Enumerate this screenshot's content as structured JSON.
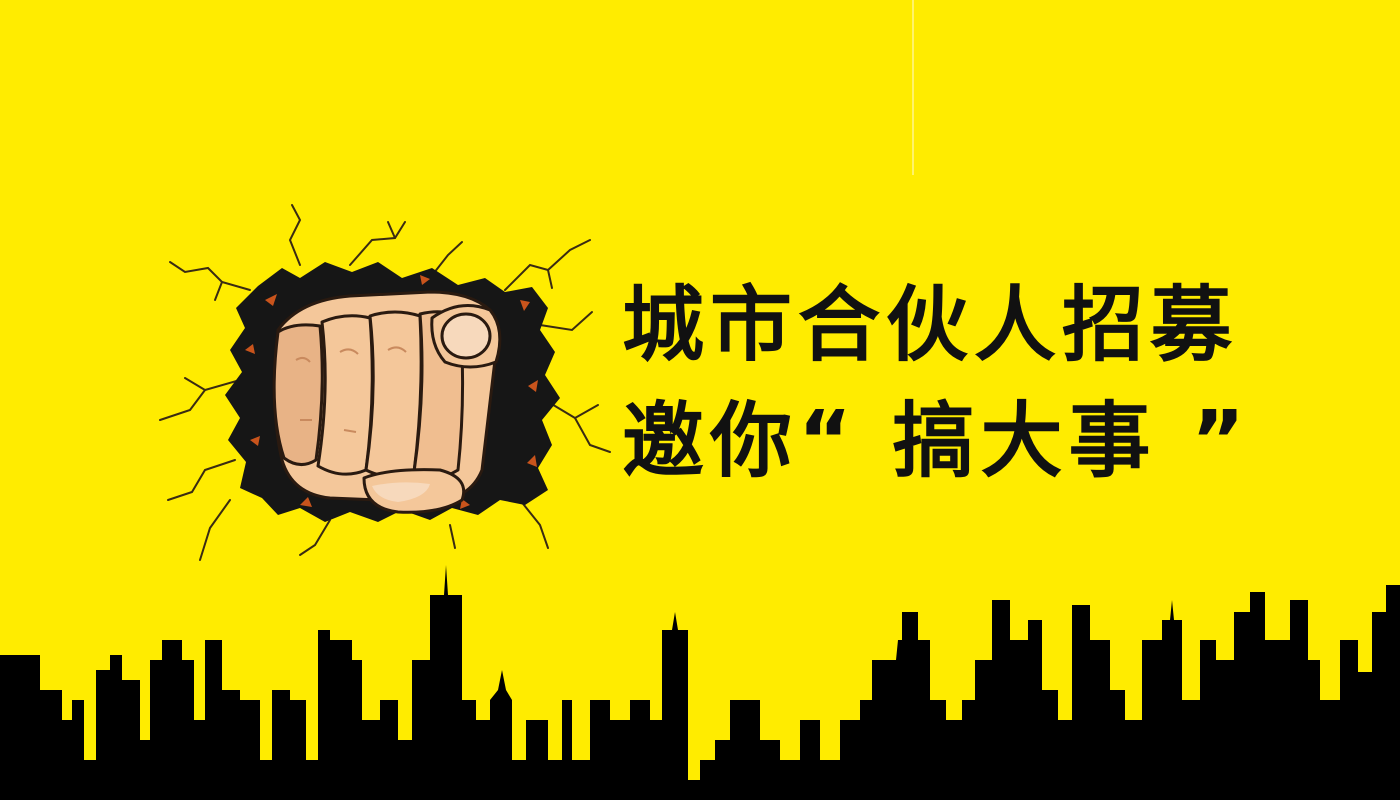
{
  "banner": {
    "headline_line1": "城市合伙人招募",
    "headline_line2": "邀你“ 搞大事 ”"
  },
  "illustration": {
    "subject": "pointing-fist",
    "background": "cracked-wall-hole"
  },
  "colors": {
    "background": "#FFEC00",
    "text": "#111111",
    "silhouette": "#000000",
    "skin": "#F4C79A",
    "skin_shadow": "#D99F74"
  }
}
